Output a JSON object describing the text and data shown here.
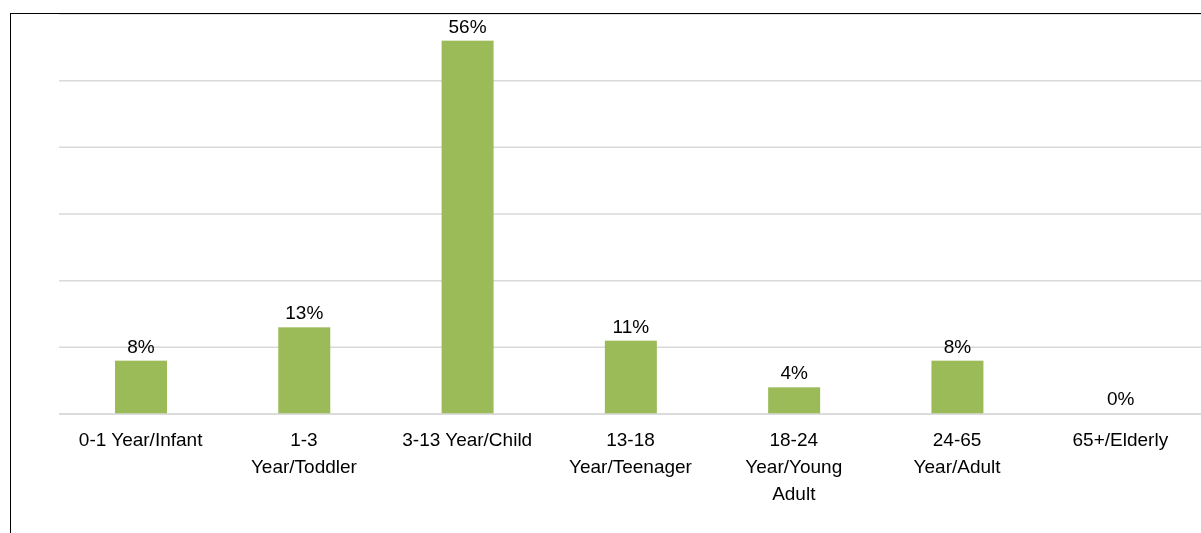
{
  "chart_data": {
    "type": "bar",
    "categories": [
      "0-1 Year/Infant",
      "1-3 Year/Toddler",
      "3-13 Year/Child",
      "13-18 Year/Teenager",
      "18-24 Year/Young Adult",
      "24-65 Year/Adult",
      "65+/Elderly"
    ],
    "values": [
      8,
      13,
      56,
      11,
      4,
      8,
      0
    ],
    "value_labels": [
      "8%",
      "13%",
      "56%",
      "11%",
      "4%",
      "8%",
      "0%"
    ],
    "color": "#9bbb59",
    "ylim": [
      0,
      60
    ],
    "grid": "y",
    "tick_labels": "x",
    "legend": false
  }
}
